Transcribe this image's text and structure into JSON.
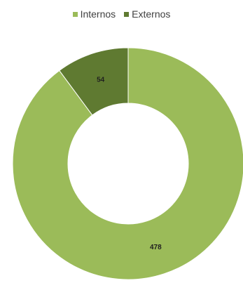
{
  "chart_data": {
    "type": "pie",
    "variant": "donut",
    "categories": [
      "Internos",
      "Externos"
    ],
    "values": [
      478,
      54
    ],
    "colors": [
      "#9bbb59",
      "#5f7a31"
    ],
    "legend_position": "top",
    "data_labels": [
      "478",
      "54"
    ],
    "title": ""
  }
}
